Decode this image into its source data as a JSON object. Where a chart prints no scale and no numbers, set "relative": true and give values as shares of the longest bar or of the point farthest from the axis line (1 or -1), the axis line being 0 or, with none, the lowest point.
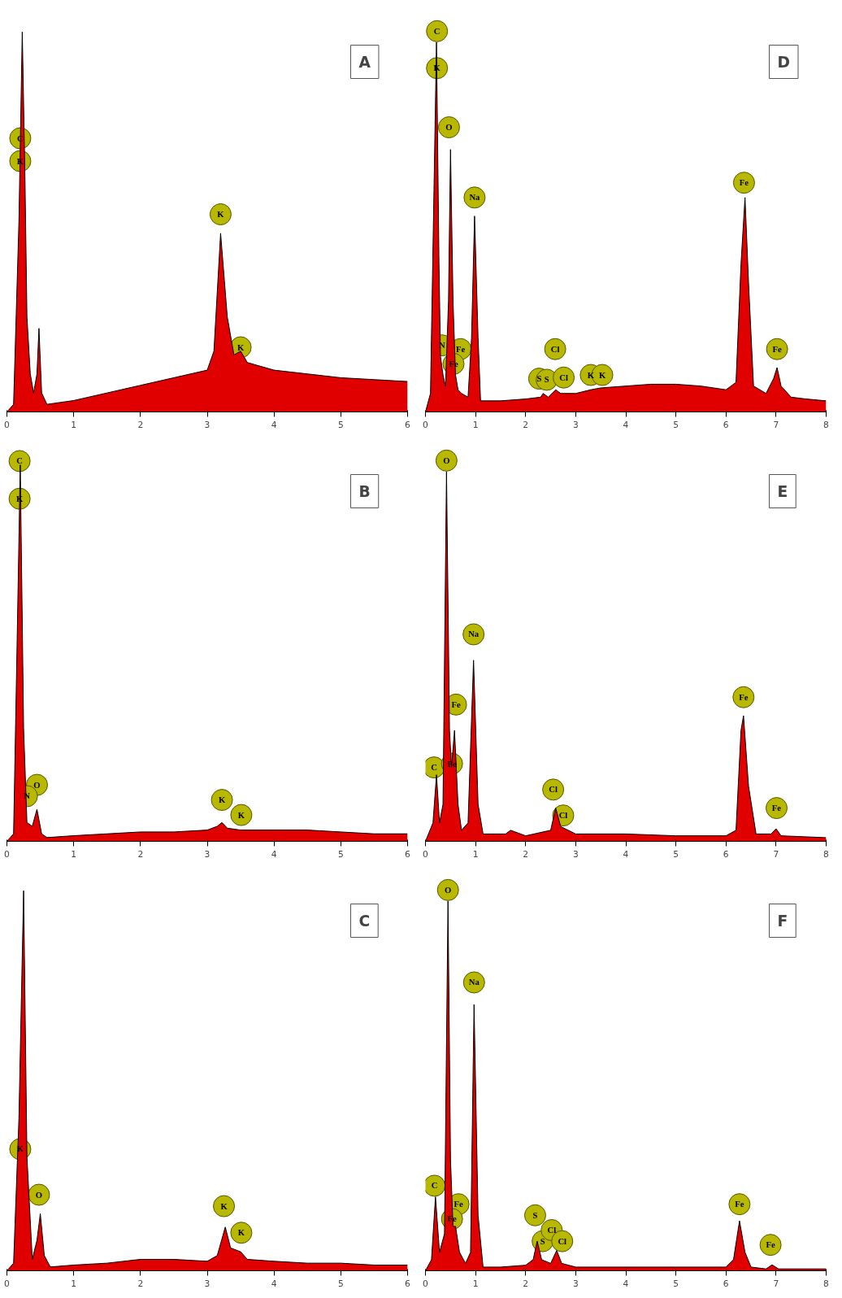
{
  "chart_data": [
    {
      "type": "area",
      "title": "A",
      "relative": true,
      "tick_labels": "x",
      "xlim": [
        0,
        6
      ],
      "xticks": [
        0,
        1,
        2,
        3,
        4,
        5,
        6
      ],
      "grid": false,
      "series": [
        {
          "color": "#e00000",
          "x": [
            0,
            0.1,
            0.18,
            0.23,
            0.27,
            0.3,
            0.35,
            0.4,
            0.45,
            0.48,
            0.52,
            0.6,
            1.0,
            1.5,
            2.0,
            2.5,
            3.0,
            3.1,
            3.2,
            3.3,
            3.4,
            3.5,
            3.6,
            4.0,
            4.5,
            5.0,
            5.5,
            6.0
          ],
          "values": [
            0,
            0.02,
            0.5,
            1.0,
            0.62,
            0.25,
            0.1,
            0.05,
            0.1,
            0.22,
            0.05,
            0.02,
            0.03,
            0.05,
            0.07,
            0.09,
            0.11,
            0.16,
            0.47,
            0.25,
            0.15,
            0.16,
            0.13,
            0.11,
            0.1,
            0.09,
            0.085,
            0.08
          ]
        }
      ],
      "annotations": [
        {
          "text": "C",
          "x": 0.2,
          "y": 0.72
        },
        {
          "text": "K",
          "x": 0.2,
          "y": 0.66
        },
        {
          "text": "K",
          "x": 3.2,
          "y": 0.52
        },
        {
          "text": "K",
          "x": 3.5,
          "y": 0.17
        }
      ]
    },
    {
      "type": "area",
      "title": "D",
      "relative": true,
      "tick_labels": "x",
      "xlim": [
        0,
        8
      ],
      "xticks": [
        0,
        1,
        2,
        3,
        4,
        5,
        6,
        7,
        8
      ],
      "grid": false,
      "series": [
        {
          "color": "#e00000",
          "x": [
            0,
            0.1,
            0.17,
            0.22,
            0.27,
            0.3,
            0.35,
            0.4,
            0.46,
            0.5,
            0.55,
            0.6,
            0.65,
            0.72,
            0.85,
            0.92,
            0.98,
            1.05,
            1.1,
            1.5,
            2.0,
            2.3,
            2.35,
            2.45,
            2.6,
            2.7,
            3.0,
            3.3,
            3.5,
            4.0,
            4.5,
            5.0,
            5.5,
            6.0,
            6.2,
            6.3,
            6.38,
            6.45,
            6.55,
            6.8,
            6.95,
            7.02,
            7.1,
            7.3,
            7.6,
            8.0
          ],
          "values": [
            0,
            0.05,
            0.6,
            1.0,
            0.4,
            0.15,
            0.1,
            0.07,
            0.3,
            0.71,
            0.3,
            0.1,
            0.06,
            0.05,
            0.04,
            0.2,
            0.53,
            0.2,
            0.03,
            0.03,
            0.035,
            0.04,
            0.05,
            0.04,
            0.06,
            0.05,
            0.05,
            0.06,
            0.065,
            0.07,
            0.075,
            0.075,
            0.07,
            0.06,
            0.08,
            0.4,
            0.58,
            0.35,
            0.07,
            0.05,
            0.09,
            0.12,
            0.07,
            0.04,
            0.035,
            0.03
          ]
        }
      ],
      "annotations": [
        {
          "text": "C",
          "x": 0.23,
          "y": 1.03
        },
        {
          "text": "K",
          "x": 0.23,
          "y": 0.93
        },
        {
          "text": "O",
          "x": 0.47,
          "y": 0.77
        },
        {
          "text": "Na",
          "x": 0.98,
          "y": 0.58
        },
        {
          "text": "N",
          "x": 0.33,
          "y": 0.18
        },
        {
          "text": "Fe",
          "x": 0.7,
          "y": 0.17
        },
        {
          "text": "Fe",
          "x": 0.56,
          "y": 0.13
        },
        {
          "text": "Cl",
          "x": 2.59,
          "y": 0.17
        },
        {
          "text": "S",
          "x": 2.27,
          "y": 0.09
        },
        {
          "text": "S",
          "x": 2.42,
          "y": 0.087
        },
        {
          "text": "Cl",
          "x": 2.76,
          "y": 0.093
        },
        {
          "text": "K",
          "x": 3.3,
          "y": 0.1
        },
        {
          "text": "K",
          "x": 3.53,
          "y": 0.1
        },
        {
          "text": "Fe",
          "x": 6.36,
          "y": 0.62
        },
        {
          "text": "Fe",
          "x": 7.02,
          "y": 0.17
        }
      ]
    },
    {
      "type": "area",
      "title": "B",
      "relative": true,
      "tick_labels": "x",
      "xlim": [
        0,
        6
      ],
      "xticks": [
        0,
        1,
        2,
        3,
        4,
        5,
        6
      ],
      "grid": false,
      "series": [
        {
          "color": "#e00000",
          "x": [
            0,
            0.1,
            0.15,
            0.2,
            0.25,
            0.3,
            0.38,
            0.45,
            0.52,
            0.6,
            1.0,
            1.5,
            2.0,
            2.5,
            3.0,
            3.15,
            3.22,
            3.3,
            3.5,
            3.6,
            4.0,
            4.5,
            5.0,
            5.5,
            6.0
          ],
          "values": [
            0,
            0.02,
            0.5,
            1.0,
            0.3,
            0.05,
            0.04,
            0.085,
            0.02,
            0.01,
            0.015,
            0.02,
            0.025,
            0.025,
            0.03,
            0.04,
            0.05,
            0.035,
            0.03,
            0.03,
            0.03,
            0.03,
            0.025,
            0.02,
            0.02
          ]
        }
      ],
      "annotations": [
        {
          "text": "C",
          "x": 0.19,
          "y": 1.01
        },
        {
          "text": "K",
          "x": 0.19,
          "y": 0.91
        },
        {
          "text": "O",
          "x": 0.45,
          "y": 0.15
        },
        {
          "text": "N",
          "x": 0.3,
          "y": 0.12
        },
        {
          "text": "K",
          "x": 3.22,
          "y": 0.11
        },
        {
          "text": "K",
          "x": 3.51,
          "y": 0.07
        }
      ]
    },
    {
      "type": "area",
      "title": "E",
      "relative": true,
      "tick_labels": "x",
      "xlim": [
        0,
        8
      ],
      "xticks": [
        0,
        1,
        2,
        3,
        4,
        5,
        6,
        7,
        8
      ],
      "grid": false,
      "series": [
        {
          "color": "#e00000",
          "x": [
            0,
            0.15,
            0.22,
            0.28,
            0.35,
            0.42,
            0.48,
            0.52,
            0.58,
            0.65,
            0.72,
            0.85,
            0.96,
            1.05,
            1.15,
            1.6,
            1.7,
            2.0,
            2.5,
            2.6,
            2.7,
            3.0,
            4.0,
            5.0,
            6.0,
            6.2,
            6.3,
            6.35,
            6.45,
            6.6,
            6.9,
            7.0,
            7.1,
            8.0
          ],
          "values": [
            0,
            0.05,
            0.18,
            0.05,
            0.1,
            1.0,
            0.3,
            0.2,
            0.3,
            0.1,
            0.03,
            0.05,
            0.49,
            0.1,
            0.02,
            0.02,
            0.03,
            0.015,
            0.03,
            0.09,
            0.04,
            0.02,
            0.02,
            0.015,
            0.015,
            0.03,
            0.3,
            0.34,
            0.15,
            0.02,
            0.02,
            0.034,
            0.015,
            0.01
          ]
        }
      ],
      "annotations": [
        {
          "text": "O",
          "x": 0.42,
          "y": 1.03
        },
        {
          "text": "Na",
          "x": 0.96,
          "y": 0.56
        },
        {
          "text": "Fe",
          "x": 0.61,
          "y": 0.37
        },
        {
          "text": "C",
          "x": 0.17,
          "y": 0.2
        },
        {
          "text": "Fe",
          "x": 0.53,
          "y": 0.21
        },
        {
          "text": "Cl",
          "x": 2.55,
          "y": 0.14
        },
        {
          "text": "Cl",
          "x": 2.75,
          "y": 0.07
        },
        {
          "text": "Fe",
          "x": 6.35,
          "y": 0.39
        },
        {
          "text": "Fe",
          "x": 7.01,
          "y": 0.09
        }
      ]
    },
    {
      "type": "area",
      "title": "C",
      "relative": true,
      "tick_labels": "x",
      "xlim": [
        0,
        6
      ],
      "xticks": [
        0,
        1,
        2,
        3,
        4,
        5,
        6
      ],
      "grid": false,
      "series": [
        {
          "color": "#e00000",
          "x": [
            0,
            0.1,
            0.18,
            0.25,
            0.3,
            0.38,
            0.45,
            0.5,
            0.56,
            0.65,
            1.0,
            1.5,
            2.0,
            2.5,
            3.0,
            3.15,
            3.27,
            3.35,
            3.5,
            3.6,
            4.0,
            4.5,
            5.0,
            5.5,
            6.0
          ],
          "values": [
            0,
            0.02,
            0.4,
            1.0,
            0.3,
            0.03,
            0.08,
            0.15,
            0.04,
            0.01,
            0.015,
            0.02,
            0.03,
            0.03,
            0.025,
            0.04,
            0.115,
            0.06,
            0.05,
            0.03,
            0.025,
            0.02,
            0.02,
            0.015,
            0.015
          ]
        }
      ],
      "annotations": [
        {
          "text": "K",
          "x": 0.2,
          "y": 0.32
        },
        {
          "text": "O",
          "x": 0.48,
          "y": 0.2
        },
        {
          "text": "K",
          "x": 3.25,
          "y": 0.17
        },
        {
          "text": "K",
          "x": 3.51,
          "y": 0.1
        }
      ]
    },
    {
      "type": "area",
      "title": "F",
      "relative": true,
      "tick_labels": "x",
      "xlim": [
        0,
        8
      ],
      "xticks": [
        0,
        1,
        2,
        3,
        4,
        5,
        6,
        7,
        8
      ],
      "grid": false,
      "series": [
        {
          "color": "#e00000",
          "x": [
            0,
            0.12,
            0.2,
            0.28,
            0.38,
            0.45,
            0.5,
            0.55,
            0.6,
            0.68,
            0.8,
            0.9,
            0.97,
            1.05,
            1.15,
            1.5,
            2.0,
            2.15,
            2.23,
            2.32,
            2.5,
            2.62,
            2.72,
            3.0,
            4.0,
            5.0,
            6.0,
            6.15,
            6.27,
            6.38,
            6.5,
            6.8,
            6.92,
            7.05,
            8.0
          ],
          "values": [
            0,
            0.03,
            0.2,
            0.05,
            0.1,
            1.0,
            0.3,
            0.12,
            0.12,
            0.05,
            0.02,
            0.05,
            0.72,
            0.15,
            0.01,
            0.01,
            0.015,
            0.03,
            0.08,
            0.03,
            0.02,
            0.055,
            0.02,
            0.01,
            0.01,
            0.01,
            0.01,
            0.03,
            0.135,
            0.05,
            0.01,
            0.005,
            0.016,
            0.005,
            0.005
          ]
        }
      ],
      "annotations": [
        {
          "text": "O",
          "x": 0.45,
          "y": 1.03
        },
        {
          "text": "Na",
          "x": 0.97,
          "y": 0.78
        },
        {
          "text": "C",
          "x": 0.18,
          "y": 0.23
        },
        {
          "text": "Fe",
          "x": 0.66,
          "y": 0.18
        },
        {
          "text": "Fe",
          "x": 0.53,
          "y": 0.14
        },
        {
          "text": "S",
          "x": 2.19,
          "y": 0.15
        },
        {
          "text": "S",
          "x": 2.34,
          "y": 0.08
        },
        {
          "text": "Cl",
          "x": 2.52,
          "y": 0.11
        },
        {
          "text": "Cl",
          "x": 2.73,
          "y": 0.08
        },
        {
          "text": "Fe",
          "x": 6.27,
          "y": 0.18
        },
        {
          "text": "Fe",
          "x": 6.89,
          "y": 0.07
        }
      ]
    }
  ]
}
